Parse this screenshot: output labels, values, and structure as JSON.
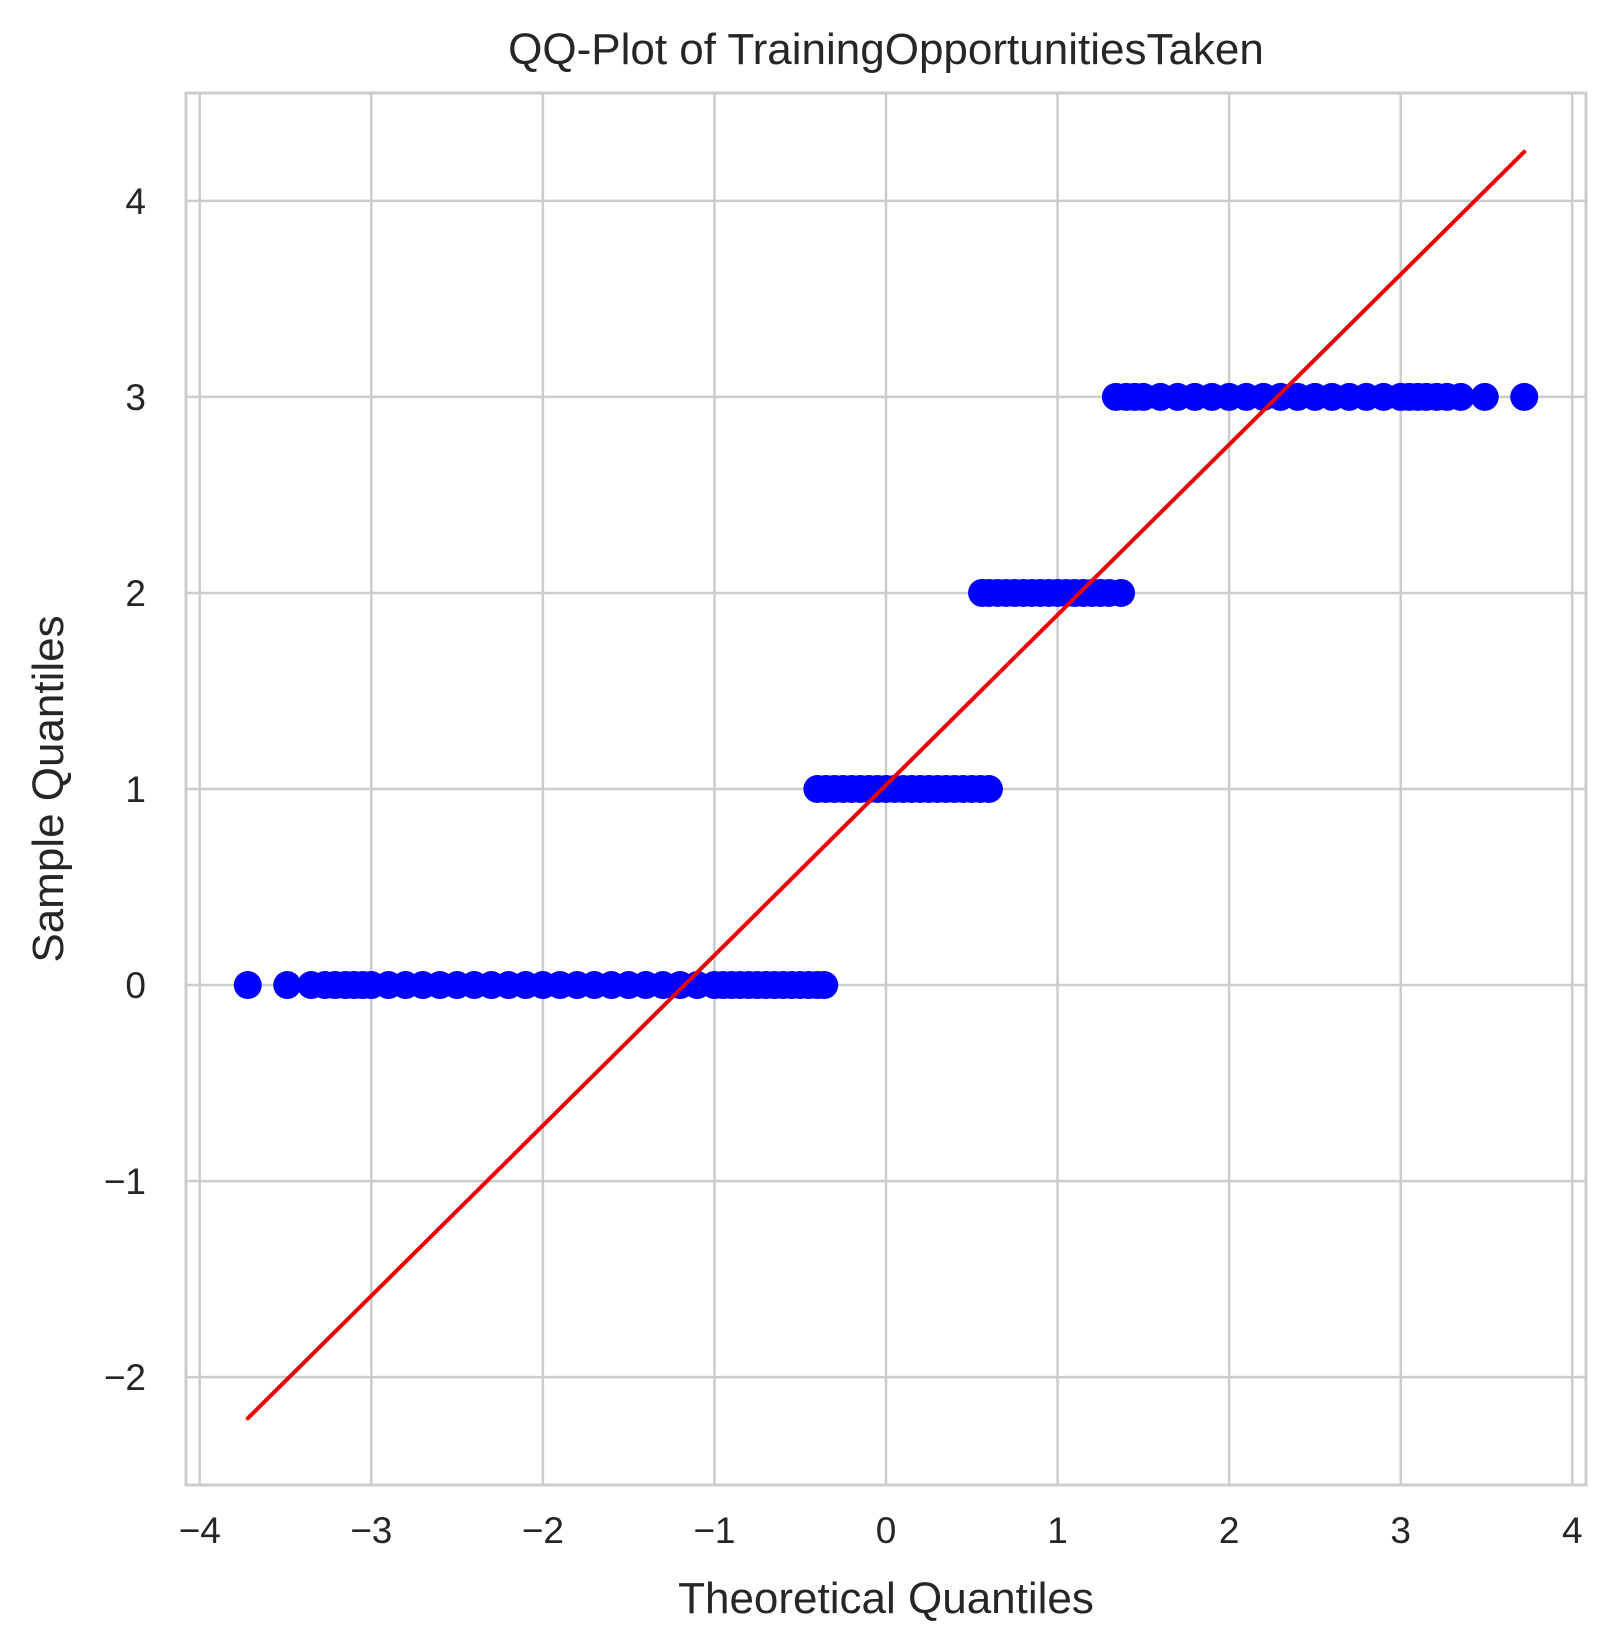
{
  "chart_data": {
    "type": "scatter",
    "title": "QQ-Plot of TrainingOpportunitiesTaken",
    "xlabel": "Theoretical Quantiles",
    "ylabel": "Sample Quantiles",
    "xlim": [
      -4.08,
      4.08
    ],
    "ylim": [
      -2.55,
      4.55
    ],
    "x_ticks": [
      -4,
      -3,
      -2,
      -1,
      0,
      1,
      2,
      3,
      4
    ],
    "x_tick_labels": [
      "−4",
      "−3",
      "−2",
      "−1",
      "0",
      "1",
      "2",
      "3",
      "4"
    ],
    "y_ticks": [
      -2,
      -1,
      0,
      1,
      2,
      3,
      4
    ],
    "y_tick_labels": [
      "−2",
      "−1",
      "0",
      "1",
      "2",
      "3",
      "4"
    ],
    "grid": true,
    "series": [
      {
        "kind": "points",
        "color": "#0000ff",
        "x": [
          -3.72,
          -3.49,
          -3.35,
          -3.27,
          -3.21,
          -3.15,
          -3.1,
          -3.05,
          -3.0,
          -2.9,
          -2.8,
          -2.7,
          -2.6,
          -2.5,
          -2.4,
          -2.3,
          -2.2,
          -2.1,
          -2.0,
          -1.9,
          -1.8,
          -1.7,
          -1.6,
          -1.5,
          -1.4,
          -1.3,
          -1.2,
          -1.1,
          -1.0,
          -0.95,
          -0.9,
          -0.85,
          -0.8,
          -0.75,
          -0.7,
          -0.65,
          -0.6,
          -0.55,
          -0.5,
          -0.45,
          -0.4,
          -0.36,
          -0.4,
          -0.35,
          -0.3,
          -0.25,
          -0.2,
          -0.15,
          -0.1,
          -0.05,
          0.0,
          0.05,
          0.1,
          0.15,
          0.2,
          0.25,
          0.3,
          0.35,
          0.4,
          0.45,
          0.5,
          0.55,
          0.6,
          0.56,
          0.6,
          0.65,
          0.7,
          0.75,
          0.8,
          0.85,
          0.9,
          0.95,
          1.0,
          1.05,
          1.1,
          1.15,
          1.2,
          1.25,
          1.3,
          1.37,
          1.34,
          1.4,
          1.45,
          1.5,
          1.6,
          1.7,
          1.8,
          1.9,
          2.0,
          2.1,
          2.2,
          2.3,
          2.4,
          2.5,
          2.6,
          2.7,
          2.8,
          2.9,
          3.0,
          3.05,
          3.1,
          3.15,
          3.21,
          3.27,
          3.35,
          3.49,
          3.72
        ],
        "y": [
          0,
          0,
          0,
          0,
          0,
          0,
          0,
          0,
          0,
          0,
          0,
          0,
          0,
          0,
          0,
          0,
          0,
          0,
          0,
          0,
          0,
          0,
          0,
          0,
          0,
          0,
          0,
          0,
          0,
          0,
          0,
          0,
          0,
          0,
          0,
          0,
          0,
          0,
          0,
          0,
          0,
          0,
          1,
          1,
          1,
          1,
          1,
          1,
          1,
          1,
          1,
          1,
          1,
          1,
          1,
          1,
          1,
          1,
          1,
          1,
          1,
          1,
          1,
          2,
          2,
          2,
          2,
          2,
          2,
          2,
          2,
          2,
          2,
          2,
          2,
          2,
          2,
          2,
          2,
          2,
          3,
          3,
          3,
          3,
          3,
          3,
          3,
          3,
          3,
          3,
          3,
          3,
          3,
          3,
          3,
          3,
          3,
          3,
          3,
          3,
          3,
          3,
          3,
          3,
          3,
          3,
          3
        ]
      },
      {
        "kind": "line",
        "color": "#ee0000",
        "x": [
          -3.72,
          3.72
        ],
        "y": [
          -2.21,
          4.25
        ]
      }
    ]
  }
}
